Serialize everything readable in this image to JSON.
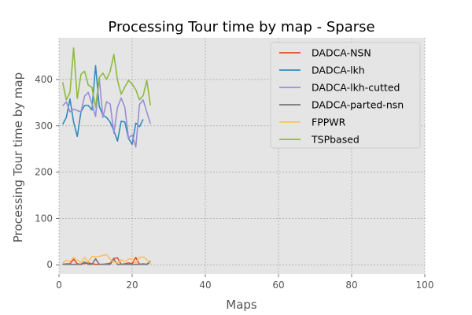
{
  "chart_data": {
    "type": "line",
    "title": "Processing Tour time by map - Sparse",
    "xlabel": "Maps",
    "ylabel": "Processing Tour time by map",
    "xlim": [
      0,
      100
    ],
    "ylim": [
      -20,
      490
    ],
    "xticks": [
      0,
      20,
      40,
      60,
      80,
      100
    ],
    "yticks": [
      0,
      100,
      200,
      300,
      400
    ],
    "grid": true,
    "legend_position": "top-right",
    "colors": {
      "background": "#e5e5e5",
      "grid": "#999999",
      "text": "#555555"
    },
    "series": [
      {
        "name": "DADCA-NSN",
        "color": "#e24a33",
        "x": [
          1,
          2,
          3,
          4,
          5,
          6,
          7,
          8,
          9,
          10,
          11,
          12,
          13,
          14,
          15,
          16,
          17,
          18,
          19,
          20,
          21,
          22,
          23,
          24,
          25
        ],
        "y": [
          1,
          2,
          2,
          12,
          2,
          1,
          3,
          4,
          2,
          1,
          1,
          1,
          2,
          3,
          14,
          15,
          1,
          2,
          4,
          2,
          16,
          1,
          2,
          1,
          6
        ]
      },
      {
        "name": "DADCA-lkh",
        "color": "#348abd",
        "x": [
          1,
          2,
          3,
          4,
          5,
          6,
          7,
          8,
          9,
          10,
          11,
          12,
          13,
          14,
          15,
          16,
          17,
          18,
          19,
          20,
          21,
          22,
          23
        ],
        "y": [
          303,
          318,
          358,
          308,
          277,
          330,
          344,
          344,
          334,
          430,
          342,
          323,
          318,
          308,
          289,
          267,
          310,
          308,
          273,
          260,
          306,
          298,
          314
        ]
      },
      {
        "name": "DADCA-lkh-cutted",
        "color": "#988ed5",
        "x": [
          1,
          2,
          3,
          4,
          5,
          6,
          7,
          8,
          9,
          10,
          11,
          12,
          13,
          14,
          15,
          16,
          17,
          18,
          19,
          20,
          21,
          22,
          23,
          24,
          25
        ],
        "y": [
          343,
          352,
          330,
          336,
          333,
          330,
          364,
          372,
          348,
          320,
          403,
          318,
          352,
          347,
          284,
          340,
          360,
          340,
          274,
          280,
          254,
          346,
          356,
          330,
          304
        ]
      },
      {
        "name": "DADCA-parted-nsn",
        "color": "#777777",
        "x": [
          1,
          2,
          3,
          4,
          5,
          6,
          7,
          8,
          9,
          10,
          11,
          12,
          13,
          14,
          15,
          16,
          17,
          18,
          19,
          20,
          21,
          22,
          23,
          24,
          25
        ],
        "y": [
          1,
          1,
          1,
          1,
          1,
          1,
          6,
          1,
          1,
          13,
          1,
          1,
          1,
          1,
          12,
          1,
          1,
          1,
          1,
          1,
          1,
          1,
          1,
          1,
          8
        ]
      },
      {
        "name": "FPPWR",
        "color": "#fbc15e",
        "x": [
          1,
          2,
          3,
          4,
          5,
          6,
          7,
          8,
          9,
          10,
          11,
          12,
          13,
          14,
          15,
          16,
          17,
          18,
          19,
          20,
          21,
          22,
          23,
          24,
          25
        ],
        "y": [
          4,
          10,
          6,
          16,
          10,
          5,
          16,
          6,
          18,
          17,
          18,
          20,
          22,
          12,
          6,
          4,
          11,
          6,
          12,
          13,
          4,
          16,
          17,
          11,
          3
        ]
      },
      {
        "name": "TSPbased",
        "color": "#8eba42",
        "x": [
          1,
          2,
          3,
          4,
          5,
          6,
          7,
          8,
          9,
          10,
          11,
          12,
          13,
          14,
          15,
          16,
          17,
          18,
          19,
          20,
          21,
          22,
          23,
          24,
          25
        ],
        "y": [
          394,
          356,
          372,
          468,
          359,
          411,
          418,
          388,
          383,
          340,
          404,
          414,
          400,
          418,
          454,
          398,
          368,
          384,
          398,
          390,
          378,
          356,
          365,
          398,
          344
        ]
      }
    ]
  }
}
